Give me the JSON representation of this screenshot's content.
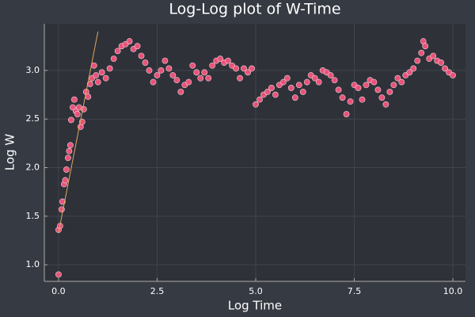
{
  "chart_data": {
    "type": "scatter",
    "title": "Log-Log plot of W-Time",
    "x_label": "Log Time",
    "y_label": "Log W",
    "xlim": [
      -0.36,
      10.32
    ],
    "ylim": [
      0.83,
      3.48
    ],
    "xticks": [
      {
        "value": 0,
        "label": "0.0"
      },
      2.5,
      {
        "value": 5,
        "label": "5.0"
      },
      7.5,
      {
        "value": 10,
        "label": "10.0"
      }
    ],
    "yticks": [
      {
        "value": 1,
        "label": "1.0"
      },
      1.5,
      {
        "value": 2,
        "label": "2.0"
      },
      2.5,
      {
        "value": 3,
        "label": "3.0"
      }
    ],
    "grid": true,
    "series": [
      {
        "kind": "points",
        "color": "#e8537a",
        "x": [
          0,
          0,
          0.04,
          0.08,
          0.1,
          0.14,
          0.17,
          0.2,
          0.24,
          0.27,
          0.3,
          0.32,
          0.36,
          0.4,
          0.44,
          0.48,
          0.52,
          0.56,
          0.6,
          0.64,
          0.7,
          0.75,
          0.8,
          0.85,
          0.9,
          0.95,
          1.0,
          1.1,
          1.2,
          1.3,
          1.4,
          1.5,
          1.6,
          1.7,
          1.8,
          1.9,
          2.0,
          2.1,
          2.2,
          2.3,
          2.4,
          2.5,
          2.6,
          2.7,
          2.8,
          2.9,
          3.0,
          3.1,
          3.2,
          3.3,
          3.4,
          3.5,
          3.6,
          3.7,
          3.8,
          3.9,
          4.0,
          4.1,
          4.2,
          4.3,
          4.4,
          4.5,
          4.6,
          4.7,
          4.8,
          4.9,
          5.0,
          5.1,
          5.2,
          5.3,
          5.4,
          5.5,
          5.6,
          5.7,
          5.8,
          5.9,
          6.0,
          6.1,
          6.2,
          6.3,
          6.4,
          6.5,
          6.6,
          6.7,
          6.8,
          6.9,
          7.0,
          7.1,
          7.2,
          7.3,
          7.4,
          7.5,
          7.6,
          7.7,
          7.8,
          7.9,
          8.0,
          8.1,
          8.2,
          8.3,
          8.4,
          8.5,
          8.6,
          8.7,
          8.8,
          8.9,
          9.0,
          9.1,
          9.2,
          9.25,
          9.3,
          9.4,
          9.5,
          9.6,
          9.7,
          9.8,
          9.9,
          10.0
        ],
        "values": [
          0.9,
          1.36,
          1.4,
          1.57,
          1.65,
          1.83,
          1.87,
          1.98,
          2.1,
          2.17,
          2.23,
          2.49,
          2.62,
          2.7,
          2.58,
          2.55,
          2.62,
          2.42,
          2.47,
          2.6,
          2.78,
          2.73,
          2.86,
          2.92,
          3.05,
          2.95,
          2.88,
          2.98,
          2.92,
          3.02,
          3.12,
          3.2,
          3.25,
          3.27,
          3.3,
          3.22,
          3.25,
          3.15,
          3.08,
          3.0,
          2.88,
          2.95,
          3.0,
          3.1,
          3.02,
          2.95,
          2.9,
          2.78,
          2.85,
          2.88,
          3.05,
          2.98,
          2.92,
          2.98,
          2.92,
          3.05,
          3.1,
          3.12,
          3.08,
          3.1,
          3.05,
          3.02,
          2.92,
          3.02,
          2.98,
          3.02,
          2.65,
          2.7,
          2.75,
          2.78,
          2.82,
          2.75,
          2.85,
          2.88,
          2.92,
          2.82,
          2.72,
          2.85,
          2.78,
          2.88,
          2.95,
          2.92,
          2.88,
          3.0,
          2.98,
          2.95,
          2.9,
          2.8,
          2.72,
          2.55,
          2.68,
          2.85,
          2.82,
          2.7,
          2.85,
          2.9,
          2.88,
          2.8,
          2.72,
          2.65,
          2.78,
          2.85,
          2.92,
          2.88,
          2.95,
          2.98,
          3.02,
          3.1,
          3.18,
          3.3,
          3.25,
          3.12,
          3.15,
          3.1,
          3.08,
          3.02,
          2.98,
          2.95
        ]
      },
      {
        "kind": "line",
        "color": "#e0a860",
        "x": [
          0,
          1.0
        ],
        "values": [
          1.33,
          3.4
        ]
      }
    ]
  }
}
